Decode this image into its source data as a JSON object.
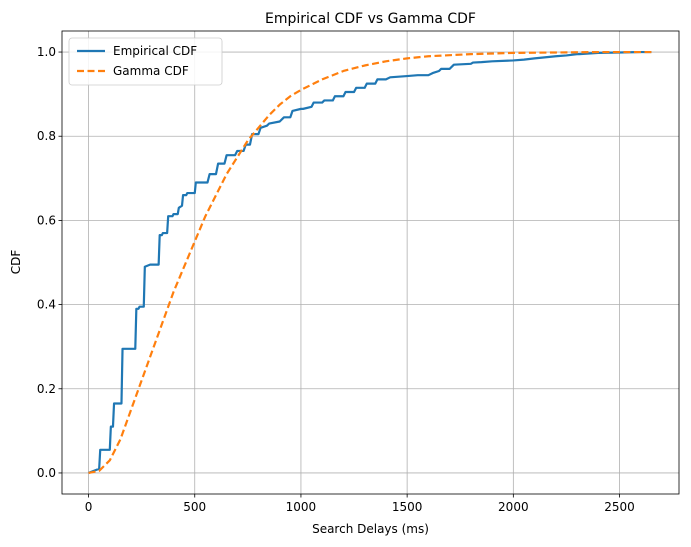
{
  "chart_data": {
    "type": "line",
    "title": "Empirical CDF vs Gamma CDF",
    "xlabel": "Search Delays (ms)",
    "ylabel": "CDF",
    "xlim": [
      -125,
      2780
    ],
    "ylim": [
      -0.05,
      1.05
    ],
    "xticks": [
      0,
      500,
      1000,
      1500,
      2000,
      2500
    ],
    "yticks": [
      0.0,
      0.2,
      0.4,
      0.6,
      0.8,
      1.0
    ],
    "grid": true,
    "legend_position": "top-left",
    "series": [
      {
        "name": "Empirical CDF",
        "color": "#1f77b4",
        "style": "solid",
        "x": [
          0,
          50,
          55,
          60,
          100,
          105,
          115,
          120,
          155,
          160,
          165,
          170,
          220,
          225,
          235,
          240,
          260,
          265,
          290,
          295,
          330,
          335,
          345,
          350,
          370,
          375,
          395,
          400,
          420,
          425,
          440,
          445,
          460,
          465,
          500,
          505,
          520,
          530,
          560,
          570,
          600,
          610,
          640,
          650,
          690,
          700,
          730,
          740,
          760,
          770,
          800,
          810,
          840,
          850,
          900,
          920,
          950,
          960,
          1000,
          1010,
          1050,
          1060,
          1100,
          1110,
          1150,
          1160,
          1200,
          1210,
          1250,
          1260,
          1300,
          1310,
          1350,
          1360,
          1400,
          1420,
          1500,
          1550,
          1600,
          1620,
          1650,
          1660,
          1700,
          1720,
          1800,
          1810,
          1850,
          1900,
          2000,
          2050,
          2100,
          2200,
          2250,
          2300,
          2310,
          2400,
          2500,
          2600,
          2650
        ],
        "y": [
          0.0,
          0.01,
          0.055,
          0.055,
          0.055,
          0.11,
          0.11,
          0.165,
          0.165,
          0.295,
          0.295,
          0.295,
          0.295,
          0.39,
          0.39,
          0.395,
          0.395,
          0.49,
          0.495,
          0.495,
          0.495,
          0.565,
          0.565,
          0.57,
          0.57,
          0.61,
          0.61,
          0.615,
          0.615,
          0.63,
          0.635,
          0.66,
          0.66,
          0.665,
          0.665,
          0.69,
          0.69,
          0.69,
          0.69,
          0.71,
          0.71,
          0.735,
          0.735,
          0.755,
          0.755,
          0.765,
          0.765,
          0.78,
          0.78,
          0.805,
          0.805,
          0.82,
          0.825,
          0.83,
          0.835,
          0.845,
          0.845,
          0.86,
          0.865,
          0.865,
          0.87,
          0.88,
          0.88,
          0.885,
          0.885,
          0.895,
          0.895,
          0.905,
          0.905,
          0.915,
          0.915,
          0.925,
          0.925,
          0.935,
          0.935,
          0.94,
          0.943,
          0.945,
          0.945,
          0.95,
          0.955,
          0.96,
          0.96,
          0.97,
          0.972,
          0.975,
          0.976,
          0.978,
          0.98,
          0.982,
          0.985,
          0.99,
          0.992,
          0.995,
          0.995,
          0.998,
          0.999,
          1.0,
          1.0
        ]
      },
      {
        "name": "Gamma CDF",
        "color": "#ff7f0e",
        "style": "dashed",
        "x": [
          0,
          50,
          100,
          150,
          200,
          250,
          300,
          350,
          400,
          450,
          500,
          550,
          600,
          650,
          700,
          750,
          800,
          850,
          900,
          950,
          1000,
          1100,
          1200,
          1300,
          1400,
          1500,
          1600,
          1800,
          2000,
          2200,
          2400,
          2650
        ],
        "y": [
          0.0,
          0.005,
          0.03,
          0.08,
          0.15,
          0.22,
          0.29,
          0.36,
          0.43,
          0.49,
          0.55,
          0.61,
          0.66,
          0.71,
          0.75,
          0.79,
          0.82,
          0.85,
          0.875,
          0.895,
          0.91,
          0.935,
          0.955,
          0.968,
          0.978,
          0.985,
          0.99,
          0.995,
          0.998,
          0.999,
          1.0,
          1.0
        ]
      }
    ]
  }
}
